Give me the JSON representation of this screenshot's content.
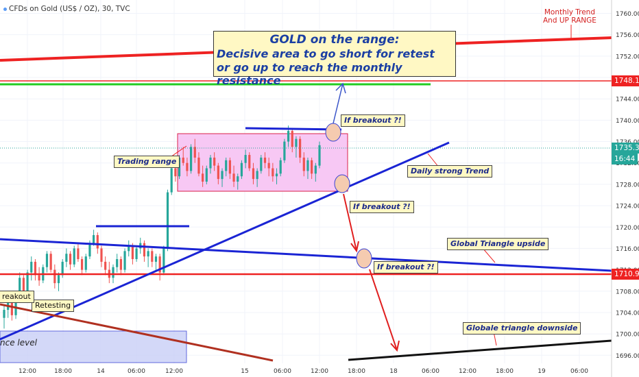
{
  "header": {
    "symbol": "CFDs on Gold (US$ / OZ), 30, TVC"
  },
  "title_box": {
    "line1": "GOLD on the range:",
    "line2": "Decisive area to go short for retest",
    "line3": "or go up to reach the monthly resistance"
  },
  "annotations": {
    "monthly_trend_1": "Monthly Trend",
    "monthly_trend_2": "And UP RANGE",
    "trading_range": "Trading range",
    "daily_trend": "Daily strong Trend",
    "breakout_up": "If breakout ?!",
    "breakout_mid": "If breakout ?!",
    "breakout_low": "If breakout ?!",
    "global_up": "Global Triangle upside",
    "global_down": "Globale triangle downside",
    "retesting": "Retesting",
    "breakout_left": "reakout",
    "resistance_left": "nce level"
  },
  "price_badges": {
    "level_1748": "1748.17",
    "current_price": "1735.32",
    "countdown": "16:44",
    "level_1710": "1710.95"
  },
  "colors": {
    "up_candle": "#26a69a",
    "down_candle": "#ef5350",
    "monthly_line": "#ee2222",
    "trend_line": "#1a24d4",
    "range_box": "#f7c8f4",
    "green_line": "#22cc22"
  },
  "chart_data": {
    "type": "candlestick",
    "y_axis": {
      "ticks": [
        1696,
        1700,
        1704,
        1708,
        1712,
        1716,
        1720,
        1724,
        1728,
        1732,
        1736,
        1740,
        1744,
        1748,
        1752,
        1756,
        1760
      ],
      "tick_labels": [
        "1696.00",
        "1700.00",
        "1704.00",
        "1708.00",
        "1712.00",
        "1716.00",
        "1720.00",
        "1724.00",
        "1728.00",
        "1732.00",
        "1736.00",
        "1740.00",
        "1744.00",
        "1748.00",
        "1752.00",
        "1756.00",
        "1760.00"
      ],
      "ylim": [
        1694.5,
        1762.5
      ]
    },
    "x_axis": {
      "tick_labels": [
        "12:00",
        "18:00",
        "14",
        "06:00",
        "12:00",
        "15",
        "06:00",
        "12:00",
        "18:00",
        "18",
        "06:00",
        "12:00",
        "18:00",
        "19",
        "06:00"
      ]
    },
    "levels": {
      "resistance": 1748.17,
      "support": 1710.95,
      "last": 1735.32
    },
    "trading_range": {
      "low": 1727,
      "high": 1738.5
    },
    "candles": [
      [
        1703.0,
        1705.5,
        1701.0,
        1704.5
      ],
      [
        1704.5,
        1707.0,
        1703.0,
        1706.0
      ],
      [
        1706.0,
        1706.5,
        1702.5,
        1703.5
      ],
      [
        1703.5,
        1708.0,
        1702.8,
        1707.5
      ],
      [
        1707.5,
        1711.5,
        1706.5,
        1710.5
      ],
      [
        1710.5,
        1711.0,
        1707.0,
        1708.0
      ],
      [
        1708.0,
        1712.0,
        1707.0,
        1711.5
      ],
      [
        1711.5,
        1714.5,
        1710.0,
        1713.5
      ],
      [
        1713.5,
        1714.0,
        1710.0,
        1711.0
      ],
      [
        1711.0,
        1712.5,
        1709.0,
        1710.0
      ],
      [
        1710.0,
        1713.0,
        1709.5,
        1712.5
      ],
      [
        1712.5,
        1715.5,
        1711.5,
        1715.0
      ],
      [
        1715.0,
        1715.5,
        1711.5,
        1712.0
      ],
      [
        1712.0,
        1713.0,
        1708.5,
        1709.5
      ],
      [
        1709.5,
        1711.5,
        1708.0,
        1711.0
      ],
      [
        1711.0,
        1714.0,
        1710.5,
        1713.5
      ],
      [
        1713.5,
        1716.0,
        1712.5,
        1715.0
      ],
      [
        1715.0,
        1715.5,
        1712.0,
        1713.0
      ],
      [
        1713.0,
        1716.5,
        1712.5,
        1716.0
      ],
      [
        1716.0,
        1717.0,
        1713.5,
        1714.0
      ],
      [
        1714.0,
        1714.5,
        1711.0,
        1712.0
      ],
      [
        1712.0,
        1715.0,
        1711.5,
        1714.5
      ],
      [
        1714.5,
        1717.5,
        1714.0,
        1717.0
      ],
      [
        1717.0,
        1719.5,
        1716.5,
        1718.5
      ],
      [
        1718.5,
        1719.0,
        1715.0,
        1716.0
      ],
      [
        1716.0,
        1716.5,
        1712.5,
        1713.5
      ],
      [
        1713.5,
        1714.5,
        1711.0,
        1712.0
      ],
      [
        1712.0,
        1713.5,
        1709.5,
        1710.5
      ],
      [
        1710.5,
        1713.0,
        1709.5,
        1712.5
      ],
      [
        1712.5,
        1715.0,
        1711.5,
        1714.0
      ],
      [
        1714.0,
        1714.5,
        1711.0,
        1712.0
      ],
      [
        1712.0,
        1716.0,
        1711.5,
        1715.5
      ],
      [
        1715.5,
        1717.5,
        1714.5,
        1716.5
      ],
      [
        1716.5,
        1717.0,
        1713.0,
        1714.0
      ],
      [
        1714.0,
        1716.5,
        1713.5,
        1716.0
      ],
      [
        1716.0,
        1718.0,
        1715.0,
        1717.0
      ],
      [
        1717.0,
        1717.5,
        1713.5,
        1714.5
      ],
      [
        1714.5,
        1716.0,
        1712.5,
        1715.5
      ],
      [
        1715.5,
        1716.0,
        1712.5,
        1713.5
      ],
      [
        1713.5,
        1715.0,
        1712.0,
        1714.5
      ],
      [
        1714.5,
        1715.0,
        1710.0,
        1711.5
      ],
      [
        1711.5,
        1716.5,
        1711.0,
        1716.0
      ],
      [
        1716.0,
        1727.0,
        1715.5,
        1726.5
      ],
      [
        1726.5,
        1732.0,
        1726.0,
        1731.0
      ],
      [
        1731.0,
        1732.5,
        1728.5,
        1729.5
      ],
      [
        1729.5,
        1733.5,
        1729.0,
        1733.0
      ],
      [
        1733.0,
        1735.0,
        1731.5,
        1732.0
      ],
      [
        1732.0,
        1733.0,
        1729.5,
        1730.5
      ],
      [
        1730.5,
        1735.5,
        1730.0,
        1735.0
      ],
      [
        1735.0,
        1736.5,
        1732.0,
        1733.0
      ],
      [
        1733.0,
        1734.0,
        1729.5,
        1730.0
      ],
      [
        1730.0,
        1731.5,
        1727.5,
        1728.5
      ],
      [
        1728.5,
        1731.5,
        1728.0,
        1731.0
      ],
      [
        1731.0,
        1733.5,
        1730.0,
        1733.0
      ],
      [
        1733.0,
        1734.0,
        1730.5,
        1731.5
      ],
      [
        1731.5,
        1732.0,
        1728.0,
        1729.0
      ],
      [
        1729.0,
        1731.0,
        1727.5,
        1730.5
      ],
      [
        1730.5,
        1733.0,
        1729.5,
        1732.5
      ],
      [
        1732.5,
        1733.0,
        1729.0,
        1730.0
      ],
      [
        1730.0,
        1731.5,
        1727.5,
        1728.5
      ],
      [
        1728.5,
        1730.0,
        1727.0,
        1729.5
      ],
      [
        1729.5,
        1732.5,
        1729.0,
        1732.0
      ],
      [
        1732.0,
        1734.5,
        1731.0,
        1733.5
      ],
      [
        1733.5,
        1734.0,
        1730.5,
        1731.0
      ],
      [
        1731.0,
        1732.0,
        1728.0,
        1729.0
      ],
      [
        1729.0,
        1731.0,
        1727.5,
        1730.5
      ],
      [
        1730.5,
        1733.5,
        1730.0,
        1733.0
      ],
      [
        1733.0,
        1734.0,
        1731.0,
        1732.0
      ],
      [
        1732.0,
        1733.0,
        1729.5,
        1731.0
      ],
      [
        1731.0,
        1732.0,
        1728.5,
        1729.5
      ],
      [
        1729.5,
        1731.0,
        1728.0,
        1730.0
      ],
      [
        1730.0,
        1733.0,
        1729.5,
        1732.5
      ],
      [
        1732.5,
        1736.5,
        1732.0,
        1736.0
      ],
      [
        1736.0,
        1739.0,
        1735.0,
        1738.0
      ],
      [
        1738.0,
        1738.5,
        1734.0,
        1735.0
      ],
      [
        1735.0,
        1737.0,
        1733.0,
        1736.5
      ],
      [
        1736.5,
        1737.0,
        1732.0,
        1733.0
      ],
      [
        1733.0,
        1734.0,
        1729.5,
        1730.5
      ],
      [
        1730.5,
        1733.0,
        1729.0,
        1732.5
      ],
      [
        1732.5,
        1733.0,
        1729.0,
        1730.0
      ],
      [
        1730.0,
        1732.0,
        1728.5,
        1731.5
      ],
      [
        1731.5,
        1736.0,
        1731.0,
        1735.32
      ]
    ]
  }
}
